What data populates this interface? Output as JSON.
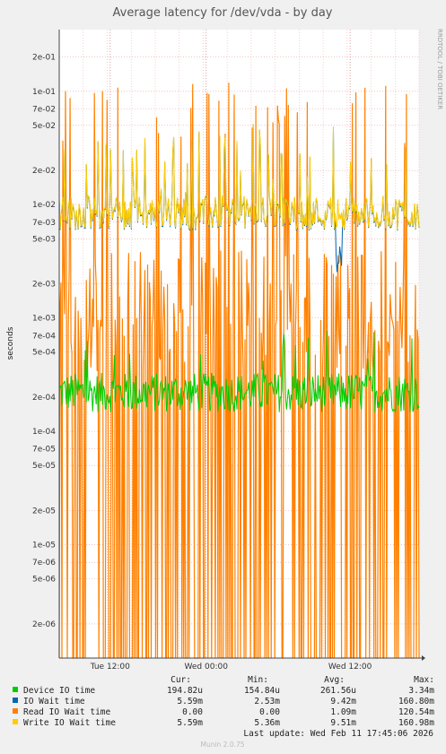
{
  "chart_data": {
    "type": "line",
    "title": "Average latency for /dev/vda - by day",
    "ylabel": "seconds",
    "y_scale": "log",
    "ylim": [
      1e-06,
      0.35
    ],
    "y_ticks": [
      {
        "value": 0.2,
        "label": "2e-01"
      },
      {
        "value": 0.1,
        "label": "1e-01"
      },
      {
        "value": 0.07,
        "label": "7e-02"
      },
      {
        "value": 0.05,
        "label": "5e-02"
      },
      {
        "value": 0.02,
        "label": "2e-02"
      },
      {
        "value": 0.01,
        "label": "1e-02"
      },
      {
        "value": 0.007,
        "label": "7e-03"
      },
      {
        "value": 0.005,
        "label": "5e-03"
      },
      {
        "value": 0.002,
        "label": "2e-03"
      },
      {
        "value": 0.001,
        "label": "1e-03"
      },
      {
        "value": 0.0007,
        "label": "7e-04"
      },
      {
        "value": 0.0005,
        "label": "5e-04"
      },
      {
        "value": 0.0002,
        "label": "2e-04"
      },
      {
        "value": 0.0001,
        "label": "1e-04"
      },
      {
        "value": 7e-05,
        "label": "7e-05"
      },
      {
        "value": 5e-05,
        "label": "5e-05"
      },
      {
        "value": 2e-05,
        "label": "2e-05"
      },
      {
        "value": 1e-05,
        "label": "1e-05"
      },
      {
        "value": 7e-06,
        "label": "7e-06"
      },
      {
        "value": 5e-06,
        "label": "5e-06"
      },
      {
        "value": 2e-06,
        "label": "2e-06"
      }
    ],
    "x_range_hours": [
      -30,
      0
    ],
    "x_ticks": [
      {
        "hours": -25.75,
        "label": "Tue 12:00"
      },
      {
        "hours": -17.75,
        "label": "Wed 00:00"
      },
      {
        "hours": -5.75,
        "label": "Wed 12:00"
      }
    ],
    "grid": true,
    "legend_position": "bottom",
    "series": [
      {
        "name": "Device IO time",
        "color": "#00cc00",
        "cur": "194.82u",
        "min": "154.84u",
        "avg": "261.56u",
        "max": "3.34m"
      },
      {
        "name": "IO Wait time",
        "color": "#0066b3",
        "cur": "5.59m",
        "min": "2.53m",
        "avg": "9.42m",
        "max": "160.80m"
      },
      {
        "name": "Read IO Wait time",
        "color": "#ff8000",
        "cur": "0.00",
        "min": "0.00",
        "avg": "1.09m",
        "max": "120.54m"
      },
      {
        "name": "Write IO Wait time",
        "color": "#ffcc00",
        "cur": "5.59m",
        "min": "5.36m",
        "avg": "9.51m",
        "max": "160.98m"
      }
    ]
  },
  "legend_headers": {
    "cur": "Cur:",
    "min": "Min:",
    "avg": "Avg:",
    "max": "Max:"
  },
  "side_text": "RRDTOOL / TOBI OETIKER",
  "last_update": "Last update:  Wed Feb 11 17:45:06 2026",
  "footer": "Munin 2.0.75"
}
